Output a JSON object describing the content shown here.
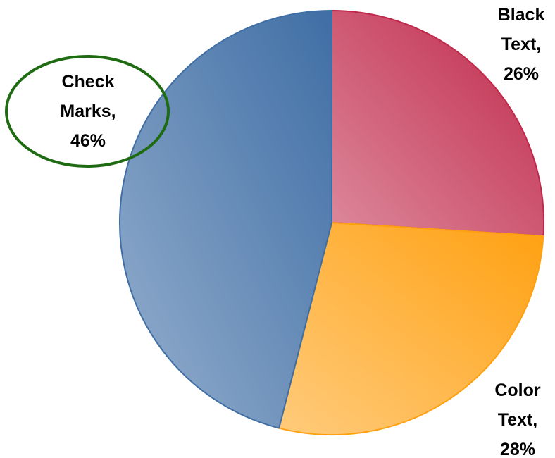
{
  "chart_data": {
    "type": "pie",
    "values": [
      26,
      28,
      46
    ],
    "value_labels": [
      "Black Text, 26%",
      "Color Text, 28%",
      "Check Marks, 46%"
    ],
    "colors": [
      "#c0284a",
      "#ffa010",
      "#3f6ea5"
    ]
  }
}
